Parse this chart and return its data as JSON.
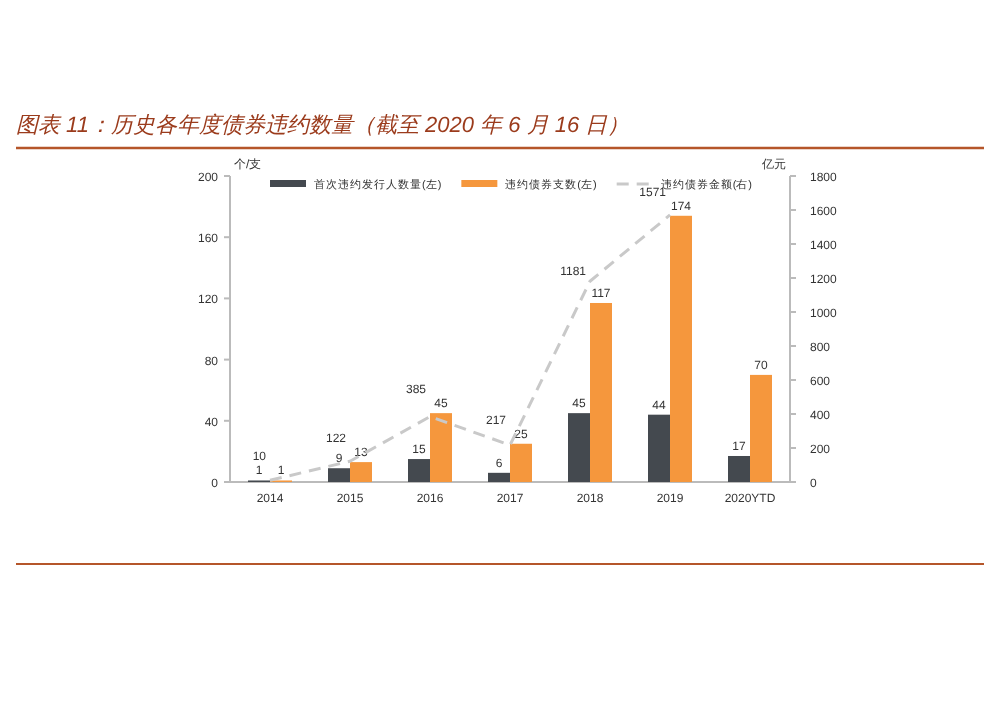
{
  "chart_data": {
    "type": "bar",
    "title": "图表 11：历史各年度债券违约数量（截至 2020 年 6 月 16 日）",
    "ylabel": "个/支",
    "y2label": "亿元",
    "categories": [
      "2014",
      "2015",
      "2016",
      "2017",
      "2018",
      "2019",
      "2020YTD"
    ],
    "series": [
      {
        "name": "首次违约发行人数量(左)",
        "color": "#44494f",
        "values": [
          1,
          9,
          15,
          6,
          45,
          44,
          17
        ]
      },
      {
        "name": "违约债券支数(左)",
        "color": "#f5973d",
        "values": [
          1,
          13,
          45,
          25,
          117,
          174,
          70
        ]
      },
      {
        "name": "违约债券金额(右)",
        "type": "line",
        "axis": "y2",
        "color": "#c9c9c9",
        "line_style": "dashed",
        "marker": "none",
        "values": [
          10,
          122,
          385,
          217,
          1181,
          1571,
          null
        ]
      }
    ],
    "ylim": [
      0,
      200
    ],
    "yticks": [
      0,
      40,
      80,
      120,
      160,
      200
    ],
    "y2lim": [
      0,
      1800
    ],
    "y2ticks": [
      0,
      200,
      400,
      600,
      800,
      1000,
      1200,
      1400,
      1600,
      1800
    ],
    "data_labels": true,
    "legend": "top",
    "grid": false
  }
}
